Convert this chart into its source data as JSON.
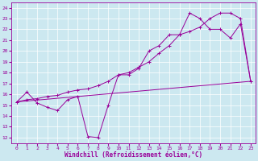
{
  "xlabel": "Windchill (Refroidissement éolien,°C)",
  "xlim": [
    -0.5,
    23.5
  ],
  "ylim": [
    11.5,
    24.5
  ],
  "xticks": [
    0,
    1,
    2,
    3,
    4,
    5,
    6,
    7,
    8,
    9,
    10,
    11,
    12,
    13,
    14,
    15,
    16,
    17,
    18,
    19,
    20,
    21,
    22,
    23
  ],
  "yticks": [
    12,
    13,
    14,
    15,
    16,
    17,
    18,
    19,
    20,
    21,
    22,
    23,
    24
  ],
  "bg_color": "#cce8f0",
  "line_color": "#990099",
  "line1_x": [
    0,
    23
  ],
  "line1_y": [
    15.3,
    17.2
  ],
  "line2_x": [
    0,
    1,
    2,
    3,
    4,
    5,
    6,
    7,
    8,
    9,
    10,
    11,
    12,
    13,
    14,
    15,
    16,
    17,
    18,
    19,
    20,
    21,
    22,
    23
  ],
  "line2_y": [
    15.3,
    16.2,
    15.2,
    14.8,
    14.5,
    15.5,
    15.8,
    12.1,
    12.0,
    15.0,
    17.8,
    17.8,
    18.4,
    20.0,
    20.5,
    21.5,
    21.5,
    23.5,
    23.0,
    22.0,
    22.0,
    21.2,
    22.5,
    17.2
  ],
  "line3_x": [
    0,
    1,
    2,
    3,
    4,
    5,
    6,
    7,
    8,
    9,
    10,
    11,
    12,
    13,
    14,
    15,
    16,
    17,
    18,
    19,
    20,
    21,
    22,
    23
  ],
  "line3_y": [
    15.3,
    15.5,
    15.6,
    15.8,
    15.9,
    16.2,
    16.4,
    16.5,
    16.8,
    17.2,
    17.8,
    18.0,
    18.5,
    19.0,
    19.8,
    20.5,
    21.5,
    21.8,
    22.2,
    23.0,
    23.5,
    23.5,
    23.0,
    17.2
  ]
}
